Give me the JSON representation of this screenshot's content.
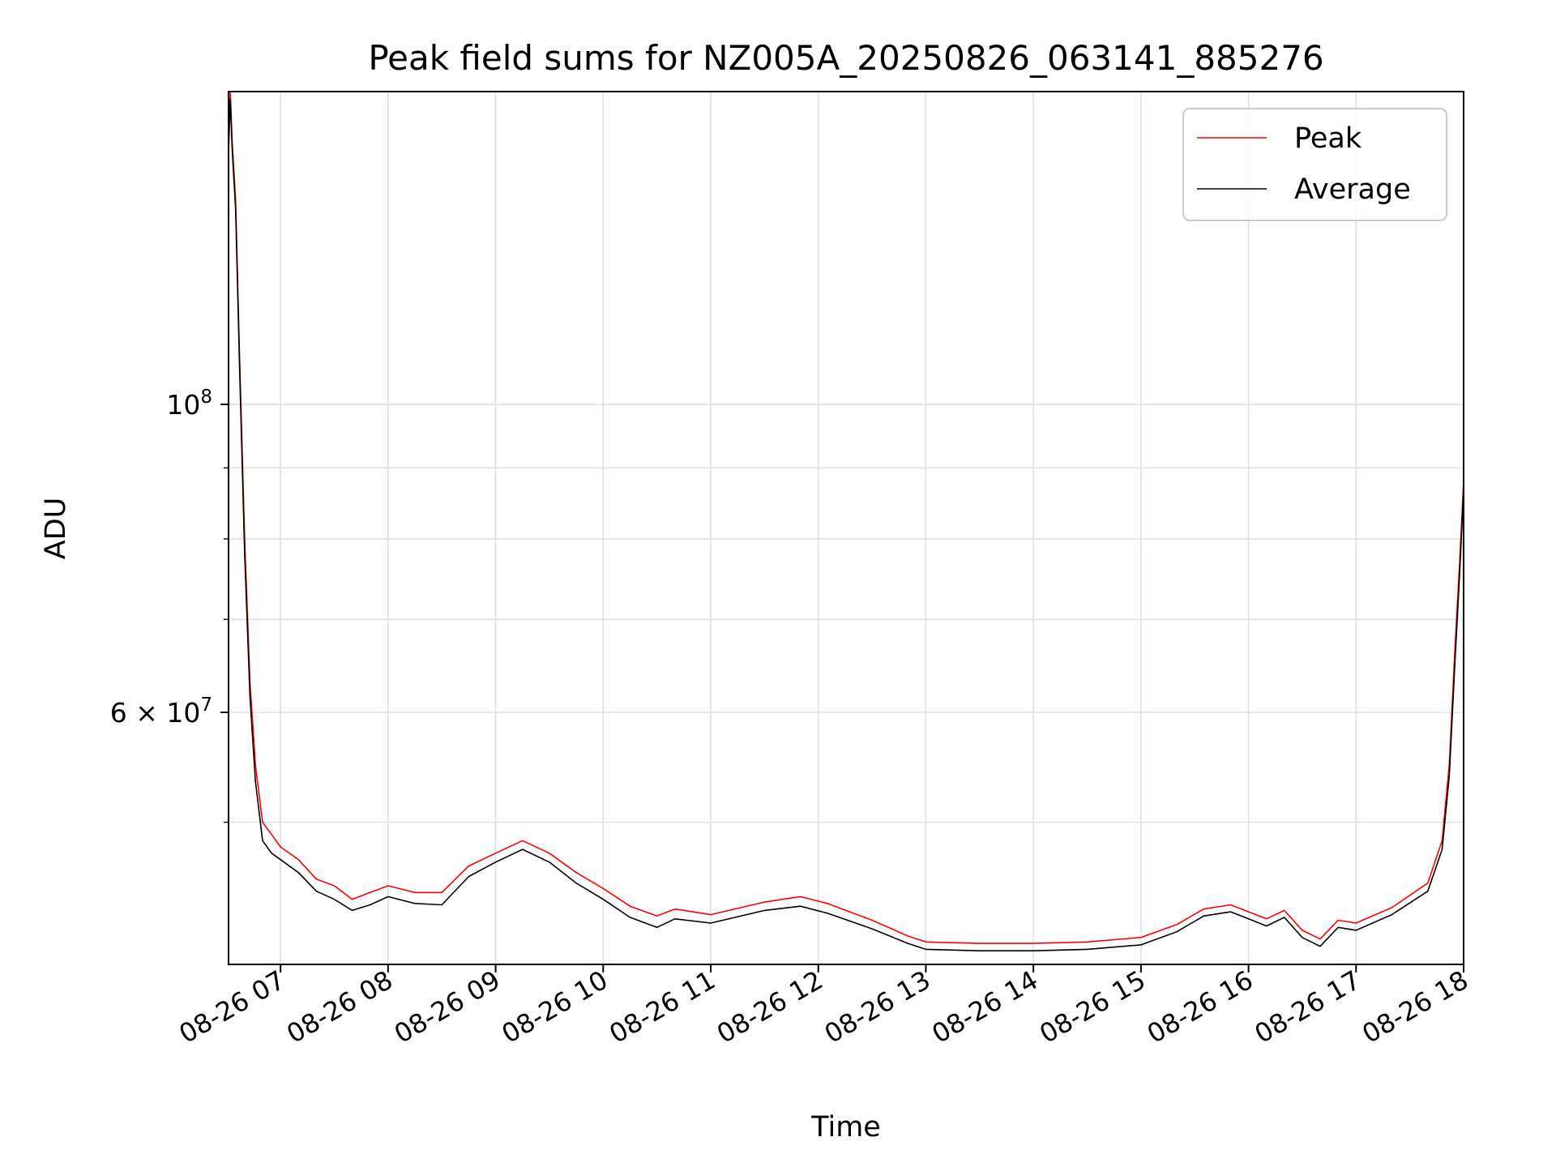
{
  "chart_data": {
    "type": "line",
    "title": "Peak field sums for NZ005A_20250826_063141_885276",
    "xlabel": "Time",
    "ylabel": "ADU",
    "x_scale": "time",
    "y_scale": "log",
    "xlim": [
      "2025-08-26 06:31",
      "2025-08-26 18:00"
    ],
    "ylim": [
      39500000,
      168000000
    ],
    "x_ticks": [
      {
        "value": "2025-08-26 07:00",
        "label": "08-26 07"
      },
      {
        "value": "2025-08-26 08:00",
        "label": "08-26 08"
      },
      {
        "value": "2025-08-26 09:00",
        "label": "08-26 09"
      },
      {
        "value": "2025-08-26 10:00",
        "label": "08-26 10"
      },
      {
        "value": "2025-08-26 11:00",
        "label": "08-26 11"
      },
      {
        "value": "2025-08-26 12:00",
        "label": "08-26 12"
      },
      {
        "value": "2025-08-26 13:00",
        "label": "08-26 13"
      },
      {
        "value": "2025-08-26 14:00",
        "label": "08-26 14"
      },
      {
        "value": "2025-08-26 15:00",
        "label": "08-26 15"
      },
      {
        "value": "2025-08-26 16:00",
        "label": "08-26 16"
      },
      {
        "value": "2025-08-26 17:00",
        "label": "08-26 17"
      },
      {
        "value": "2025-08-26 18:00",
        "label": "08-26 18"
      }
    ],
    "y_major_ticks": [
      {
        "value": 100000000,
        "label_base": "10",
        "label_exp": "8"
      },
      {
        "value": 60000000,
        "label_base": "6 × 10",
        "label_exp": "7"
      }
    ],
    "y_minor_ticks": [
      50000000,
      70000000,
      80000000,
      90000000
    ],
    "grid": true,
    "legend": {
      "placement": "upper-right"
    },
    "series": [
      {
        "name": "Peak",
        "color": "#ff0000",
        "x": [
          "2025-08-26 06:31",
          "2025-08-26 06:32",
          "2025-08-26 06:33",
          "2025-08-26 06:35",
          "2025-08-26 06:37",
          "2025-08-26 06:40",
          "2025-08-26 06:43",
          "2025-08-26 06:46",
          "2025-08-26 06:50",
          "2025-08-26 06:55",
          "2025-08-26 07:00",
          "2025-08-26 07:10",
          "2025-08-26 07:20",
          "2025-08-26 07:30",
          "2025-08-26 07:40",
          "2025-08-26 07:50",
          "2025-08-26 08:00",
          "2025-08-26 08:15",
          "2025-08-26 08:30",
          "2025-08-26 08:45",
          "2025-08-26 09:00",
          "2025-08-26 09:15",
          "2025-08-26 09:30",
          "2025-08-26 09:45",
          "2025-08-26 10:00",
          "2025-08-26 10:15",
          "2025-08-26 10:30",
          "2025-08-26 10:40",
          "2025-08-26 11:00",
          "2025-08-26 11:30",
          "2025-08-26 11:50",
          "2025-08-26 12:05",
          "2025-08-26 12:30",
          "2025-08-26 12:50",
          "2025-08-26 13:00",
          "2025-08-26 13:30",
          "2025-08-26 14:00",
          "2025-08-26 14:30",
          "2025-08-26 15:00",
          "2025-08-26 15:20",
          "2025-08-26 15:35",
          "2025-08-26 15:50",
          "2025-08-26 16:00",
          "2025-08-26 16:10",
          "2025-08-26 16:20",
          "2025-08-26 16:30",
          "2025-08-26 16:40",
          "2025-08-26 16:50",
          "2025-08-26 17:00",
          "2025-08-26 17:20",
          "2025-08-26 17:40",
          "2025-08-26 17:48",
          "2025-08-26 17:52",
          "2025-08-26 17:55",
          "2025-08-26 17:58",
          "2025-08-26 18:00"
        ],
        "y": [
          155000000,
          168000000,
          155000000,
          140000000,
          110000000,
          80000000,
          63000000,
          55000000,
          50000000,
          49000000,
          48000000,
          47000000,
          45500000,
          45000000,
          44000000,
          44500000,
          45000000,
          44500000,
          44500000,
          46500000,
          47500000,
          48500000,
          47500000,
          46000000,
          44800000,
          43500000,
          42800000,
          43300000,
          42900000,
          43800000,
          44200000,
          43700000,
          42500000,
          41400000,
          41000000,
          40900000,
          40900000,
          41000000,
          41300000,
          42200000,
          43300000,
          43600000,
          43100000,
          42600000,
          43200000,
          41800000,
          41200000,
          42500000,
          42300000,
          43400000,
          45200000,
          48500000,
          55000000,
          66000000,
          78000000,
          88000000
        ]
      },
      {
        "name": "Average",
        "color": "#000000",
        "x": [
          "2025-08-26 06:31",
          "2025-08-26 06:32",
          "2025-08-26 06:33",
          "2025-08-26 06:35",
          "2025-08-26 06:37",
          "2025-08-26 06:40",
          "2025-08-26 06:43",
          "2025-08-26 06:46",
          "2025-08-26 06:50",
          "2025-08-26 06:55",
          "2025-08-26 07:00",
          "2025-08-26 07:10",
          "2025-08-26 07:20",
          "2025-08-26 07:30",
          "2025-08-26 07:40",
          "2025-08-26 07:50",
          "2025-08-26 08:00",
          "2025-08-26 08:15",
          "2025-08-26 08:30",
          "2025-08-26 08:45",
          "2025-08-26 09:00",
          "2025-08-26 09:15",
          "2025-08-26 09:30",
          "2025-08-26 09:45",
          "2025-08-26 10:00",
          "2025-08-26 10:15",
          "2025-08-26 10:30",
          "2025-08-26 10:40",
          "2025-08-26 11:00",
          "2025-08-26 11:30",
          "2025-08-26 11:50",
          "2025-08-26 12:05",
          "2025-08-26 12:30",
          "2025-08-26 12:50",
          "2025-08-26 13:00",
          "2025-08-26 13:30",
          "2025-08-26 14:00",
          "2025-08-26 14:30",
          "2025-08-26 15:00",
          "2025-08-26 15:20",
          "2025-08-26 15:35",
          "2025-08-26 15:50",
          "2025-08-26 16:00",
          "2025-08-26 16:10",
          "2025-08-26 16:20",
          "2025-08-26 16:30",
          "2025-08-26 16:40",
          "2025-08-26 16:50",
          "2025-08-26 17:00",
          "2025-08-26 17:20",
          "2025-08-26 17:40",
          "2025-08-26 17:48",
          "2025-08-26 17:52",
          "2025-08-26 17:55",
          "2025-08-26 17:58",
          "2025-08-26 18:00"
        ],
        "y": [
          152000000,
          166000000,
          153000000,
          138000000,
          108000000,
          78000000,
          61500000,
          53500000,
          48500000,
          47500000,
          47000000,
          46000000,
          44600000,
          44000000,
          43200000,
          43600000,
          44200000,
          43700000,
          43600000,
          45700000,
          46800000,
          47800000,
          46800000,
          45200000,
          44000000,
          42700000,
          42000000,
          42600000,
          42300000,
          43200000,
          43500000,
          43000000,
          41900000,
          40900000,
          40500000,
          40400000,
          40400000,
          40500000,
          40800000,
          41700000,
          42800000,
          43100000,
          42600000,
          42100000,
          42700000,
          41300000,
          40700000,
          42000000,
          41800000,
          42900000,
          44600000,
          47800000,
          54000000,
          64500000,
          76500000,
          87000000
        ]
      }
    ]
  }
}
